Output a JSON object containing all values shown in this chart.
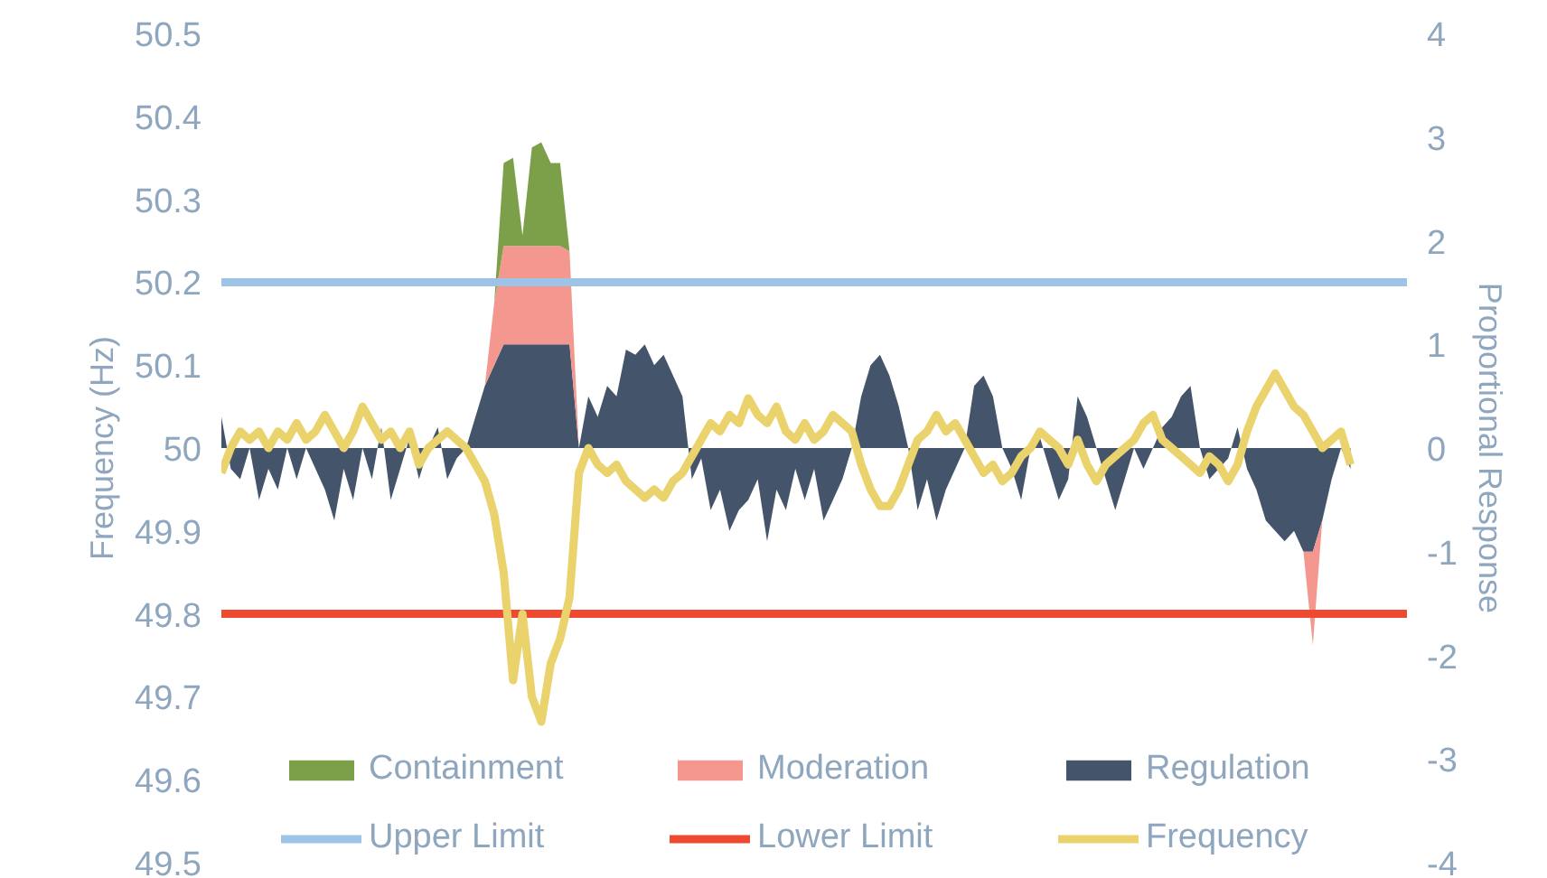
{
  "chart_data": {
    "type": "area",
    "stacked": true,
    "ylabel": "Frequency (Hz)",
    "y2label": "Proportional Response",
    "categories": [
      null,
      null,
      null,
      null,
      null,
      null,
      null,
      null,
      null,
      null,
      null,
      null,
      null,
      null,
      null,
      null,
      null,
      null,
      null,
      null,
      null,
      null,
      null,
      null,
      null,
      null,
      null,
      null,
      null,
      null,
      null,
      null,
      null,
      null,
      null,
      null,
      null,
      null,
      null,
      null,
      null,
      null,
      null,
      null,
      null,
      null,
      null,
      null,
      null,
      null,
      null,
      null,
      null,
      null,
      null,
      null,
      null,
      null,
      null,
      null,
      null,
      null,
      null,
      null,
      null,
      null,
      null,
      null,
      null,
      null,
      null,
      null,
      null,
      null,
      null,
      null,
      null,
      null,
      null,
      null,
      null,
      null,
      null,
      null,
      null,
      null,
      null,
      null,
      null,
      null,
      null,
      null,
      null,
      null,
      null,
      null,
      null,
      null,
      null,
      null,
      null,
      null,
      null,
      null,
      null,
      null,
      null,
      null,
      null,
      null,
      null,
      null,
      null,
      null,
      null,
      null,
      null,
      null,
      null,
      null,
      null
    ],
    "ylim": [
      49.5,
      50.5
    ],
    "yticks": [
      49.5,
      49.6,
      49.7,
      49.8,
      49.9,
      50,
      50.1,
      50.2,
      50.3,
      50.4,
      50.5
    ],
    "y2lim": [
      -4,
      4
    ],
    "y2ticks": [
      -4,
      -3,
      -2,
      -1,
      0,
      1,
      2,
      3,
      4
    ],
    "grid": false,
    "legend": "bottom",
    "series": [
      {
        "name": "Regulation",
        "type": "area",
        "axis": "y2",
        "color": "#44546a",
        "values": [
          0.3,
          -0.2,
          -0.3,
          0,
          -0.5,
          -0.2,
          -0.4,
          0,
          -0.3,
          0,
          -0.2,
          -0.4,
          -0.7,
          -0.2,
          -0.5,
          0,
          -0.3,
          0.2,
          -0.5,
          -0.2,
          0.1,
          -0.3,
          0,
          0.2,
          -0.3,
          -0.1,
          0,
          0.3,
          0.6,
          0.8,
          1.0,
          1.0,
          1.0,
          1.0,
          1.0,
          1.0,
          1.0,
          1.0,
          0,
          0.5,
          0.3,
          0.6,
          0.5,
          0.95,
          0.9,
          1.0,
          0.8,
          0.9,
          0.7,
          0.5,
          -0.3,
          -0.1,
          -0.6,
          -0.4,
          -0.8,
          -0.6,
          -0.5,
          -0.3,
          -0.9,
          -0.4,
          -0.6,
          -0.2,
          -0.5,
          -0.2,
          -0.7,
          -0.5,
          -0.3,
          0,
          0.5,
          0.8,
          0.9,
          0.7,
          0.4,
          0,
          -0.6,
          -0.3,
          -0.7,
          -0.4,
          -0.2,
          0,
          0.6,
          0.7,
          0.5,
          0,
          -0.2,
          -0.5,
          0,
          0.1,
          -0.2,
          -0.5,
          -0.3,
          0.5,
          0.3,
          0,
          -0.3,
          -0.6,
          -0.3,
          0,
          -0.2,
          0,
          0.2,
          0.3,
          0.5,
          0.6,
          0,
          -0.3,
          -0.2,
          -0.1,
          0.2,
          -0.2,
          -0.4,
          -0.7,
          -0.8,
          -0.9,
          -0.8,
          -1.0,
          -1.0,
          -0.7,
          -0.3,
          0,
          -0.2
        ]
      },
      {
        "name": "Moderation",
        "type": "area",
        "axis": "y2",
        "color": "#f4978e",
        "values": [
          0,
          0,
          0,
          0,
          0,
          0,
          0,
          0,
          0,
          0,
          0,
          0,
          0,
          0,
          0,
          0,
          0,
          0,
          0,
          0,
          0,
          0,
          0,
          0,
          0,
          0,
          0,
          0,
          0,
          0.6,
          0.95,
          0.95,
          0.95,
          0.95,
          0.95,
          0.95,
          0.95,
          0.9,
          0,
          0,
          0,
          0,
          0,
          0,
          0,
          0,
          0,
          0,
          0,
          0,
          0,
          0,
          0,
          0,
          0,
          0,
          0,
          0,
          0,
          0,
          0,
          0,
          0,
          0,
          0,
          0,
          0,
          0,
          0,
          0,
          0,
          0,
          0,
          0,
          0,
          0,
          0,
          0,
          0,
          0,
          0,
          0,
          0,
          0,
          0,
          0,
          0,
          0,
          0,
          0,
          0,
          0,
          0,
          0,
          0,
          0,
          0,
          0,
          0,
          0,
          0,
          0,
          0,
          0,
          0,
          0,
          0,
          0,
          0,
          0,
          0,
          0,
          0,
          0,
          0,
          0,
          -0.9,
          0,
          0,
          0,
          0
        ]
      },
      {
        "name": "Containment",
        "type": "area",
        "axis": "y2",
        "color": "#7ca04a",
        "values": [
          0,
          0,
          0,
          0,
          0,
          0,
          0,
          0,
          0,
          0,
          0,
          0,
          0,
          0,
          0,
          0,
          0,
          0,
          0,
          0,
          0,
          0,
          0,
          0,
          0,
          0,
          0,
          0,
          0,
          0,
          0.8,
          0.85,
          0.1,
          0.95,
          1.0,
          0.8,
          0.8,
          0,
          0,
          0,
          0,
          0,
          0,
          0,
          0,
          0,
          0,
          0,
          0,
          0,
          0,
          0,
          0,
          0,
          0,
          0,
          0,
          0,
          0,
          0,
          0,
          0,
          0,
          0,
          0,
          0,
          0,
          0,
          0,
          0,
          0,
          0,
          0,
          0,
          0,
          0,
          0,
          0,
          0,
          0,
          0,
          0,
          0,
          0,
          0,
          0,
          0,
          0,
          0,
          0,
          0,
          0,
          0,
          0,
          0,
          0,
          0,
          0,
          0,
          0,
          0,
          0,
          0,
          0,
          0,
          0,
          0,
          0,
          0,
          0,
          0,
          0,
          0,
          0,
          0,
          0,
          0,
          0,
          0,
          0,
          0
        ]
      },
      {
        "name": "Frequency",
        "type": "line",
        "axis": "y",
        "color": "#ead36c",
        "values": [
          49.97,
          50.0,
          50.02,
          50.01,
          50.02,
          50.0,
          50.02,
          50.01,
          50.03,
          50.01,
          50.02,
          50.04,
          50.02,
          50.0,
          50.02,
          50.05,
          50.03,
          50.01,
          50.02,
          50.0,
          50.02,
          49.98,
          50.0,
          50.01,
          50.02,
          50.01,
          50.0,
          49.98,
          49.96,
          49.92,
          49.85,
          49.72,
          49.8,
          49.7,
          49.67,
          49.74,
          49.77,
          49.82,
          49.97,
          50.0,
          49.98,
          49.97,
          49.98,
          49.96,
          49.95,
          49.94,
          49.95,
          49.94,
          49.96,
          49.97,
          49.99,
          50.01,
          50.03,
          50.02,
          50.04,
          50.03,
          50.06,
          50.04,
          50.03,
          50.05,
          50.02,
          50.01,
          50.03,
          50.01,
          50.02,
          50.04,
          50.03,
          50.02,
          49.98,
          49.95,
          49.93,
          49.93,
          49.95,
          49.98,
          50.01,
          50.02,
          50.04,
          50.02,
          50.03,
          50.01,
          49.99,
          49.97,
          49.98,
          49.96,
          49.97,
          49.99,
          50.0,
          50.02,
          50.01,
          50.0,
          49.98,
          50.01,
          49.98,
          49.96,
          49.98,
          49.99,
          50.0,
          50.01,
          50.03,
          50.04,
          50.01,
          50.0,
          49.99,
          49.98,
          49.97,
          49.99,
          49.98,
          49.96,
          49.98,
          50.02,
          50.05,
          50.07,
          50.09,
          50.07,
          50.05,
          50.04,
          50.02,
          50.0,
          50.01,
          50.02,
          49.98
        ]
      }
    ],
    "ref_lines": [
      {
        "axis": "y",
        "value": 50.2,
        "label": "Upper Limit",
        "color": "#9dc3e6"
      },
      {
        "axis": "y",
        "value": 49.8,
        "label": "Lower Limit",
        "color": "#ef4a2f"
      }
    ]
  }
}
